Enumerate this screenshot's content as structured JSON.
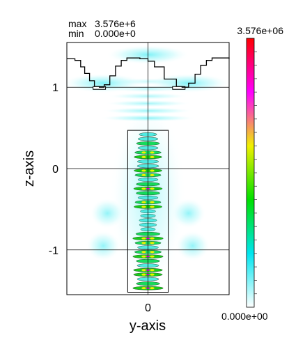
{
  "stats": {
    "max_label": "max",
    "max_value": "3.576e+6",
    "min_label": "min",
    "min_value": "0.000e+0"
  },
  "colorbar": {
    "max_label": "3.576e+06",
    "min_label": "0.000e+00",
    "stops": [
      "#ffffff",
      "#00e5ef",
      "#00e000",
      "#f0f000",
      "#ff00ff",
      "#ff0000"
    ]
  },
  "chart_data": {
    "type": "heatmap",
    "title": "",
    "xlabel": "y-axis",
    "ylabel": "z-axis",
    "xlim": [
      -1.0,
      1.0
    ],
    "ylim": [
      -1.55,
      1.55
    ],
    "x_ticks": [
      0
    ],
    "y_ticks": [
      -1,
      0,
      1
    ],
    "grid": true,
    "value_range": [
      0.0,
      3576000.0
    ],
    "core": {
      "y_min": -0.25,
      "y_max": 0.25,
      "z_min": -1.52,
      "z_max": 0.47
    },
    "surface_profile": [
      [
        -1.0,
        1.35
      ],
      [
        -0.9,
        1.33
      ],
      [
        -0.83,
        1.25
      ],
      [
        -0.78,
        1.17
      ],
      [
        -0.72,
        1.08
      ],
      [
        -0.66,
        1.01
      ],
      [
        -0.6,
        1.0
      ],
      [
        -0.54,
        1.03
      ],
      [
        -0.47,
        1.14
      ],
      [
        -0.4,
        1.26
      ],
      [
        -0.33,
        1.33
      ],
      [
        -0.26,
        1.36
      ],
      [
        -0.2,
        1.36
      ],
      [
        -0.1,
        1.35
      ],
      [
        0.0,
        1.32
      ],
      [
        0.08,
        1.25
      ],
      [
        0.2,
        1.1
      ],
      [
        0.35,
        1.01
      ],
      [
        0.42,
        1.0
      ],
      [
        0.5,
        1.05
      ],
      [
        0.58,
        1.16
      ],
      [
        0.65,
        1.27
      ],
      [
        0.72,
        1.33
      ],
      [
        0.79,
        1.36
      ],
      [
        0.85,
        1.36
      ],
      [
        1.0,
        1.35
      ]
    ],
    "tick_labels": {
      "x": [
        "0"
      ],
      "y": [
        "-1",
        "0",
        "1"
      ]
    }
  }
}
